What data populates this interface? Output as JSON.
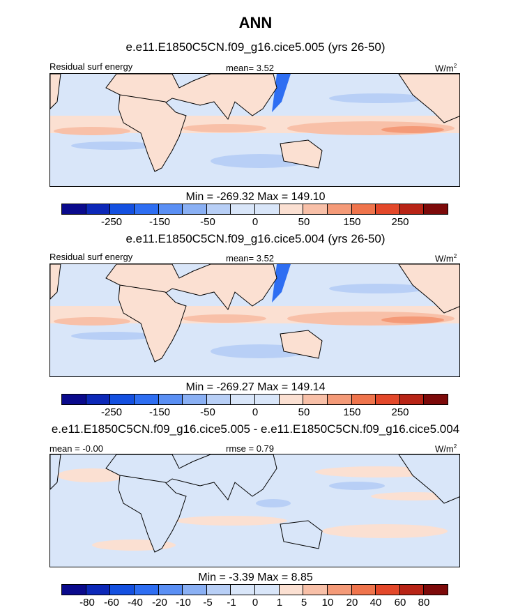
{
  "chart_data": {
    "type": "heatmap",
    "title": "ANN",
    "units": "W/m",
    "units_superscript": "2",
    "panels": [
      {
        "title": "e.e11.E1850C5CN.f09_g16.cice5.005 (yrs 26-50)",
        "left_label": "Residual surf energy",
        "center_label": "mean=   3.52",
        "min_max": "Min = -269.32 Max = 149.10",
        "colorbar_ticks": [
          "-250",
          "-150",
          "-50",
          "0",
          "50",
          "150",
          "250"
        ]
      },
      {
        "title": "e.e11.E1850C5CN.f09_g16.cice5.004 (yrs 26-50)",
        "left_label": "Residual surf energy",
        "center_label": "mean=   3.52",
        "min_max": "Min = -269.27 Max = 149.14",
        "colorbar_ticks": [
          "-250",
          "-150",
          "-50",
          "0",
          "50",
          "150",
          "250"
        ]
      },
      {
        "title": "e.e11.E1850C5CN.f09_g16.cice5.005 - e.e11.E1850C5CN.f09_g16.cice5.004",
        "left_label": "mean =  -0.00",
        "center_label": "rmse =   0.79",
        "min_max": "Min =  -3.39 Max =   8.85",
        "colorbar_ticks": [
          "-80",
          "-60",
          "-40",
          "-20",
          "-10",
          "-5",
          "-1",
          "0",
          "1",
          "5",
          "10",
          "20",
          "40",
          "60",
          "80"
        ]
      }
    ],
    "colorbar_colors": [
      "#0a0a8c",
      "#0c28b8",
      "#1450e0",
      "#2e6ef2",
      "#5a8ff4",
      "#8ab0f4",
      "#b8cff6",
      "#d9e6f9",
      "#fbe0d2",
      "#f8c0a8",
      "#f49a78",
      "#ef744c",
      "#e3482a",
      "#b82416",
      "#7d0a0a"
    ],
    "label_color": "#000000",
    "coastline_color": "#000000"
  }
}
